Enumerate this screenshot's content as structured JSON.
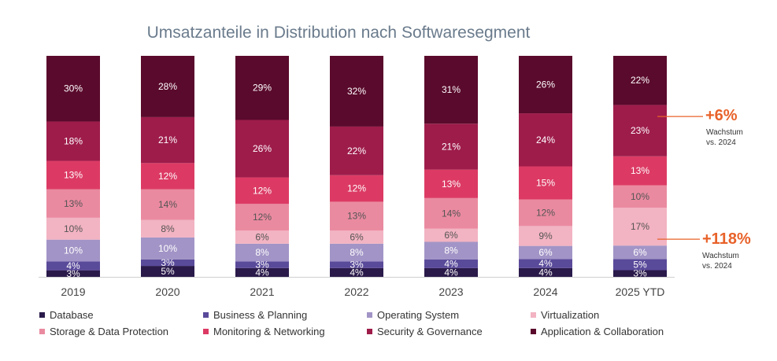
{
  "chart_data": {
    "type": "stacked-bar",
    "title": "Umsatzanteile in Distribution nach Softwaresegment",
    "categories": [
      "2019",
      "2020",
      "2021",
      "2022",
      "2023",
      "2024",
      "2025 YTD"
    ],
    "ylim": [
      0,
      100
    ],
    "series": [
      {
        "name": "Database",
        "color": "#2a1a4a",
        "values": [
          3,
          5,
          4,
          4,
          4,
          4,
          3
        ]
      },
      {
        "name": "Business & Planning",
        "color": "#5a4a9a",
        "values": [
          4,
          3,
          3,
          3,
          4,
          4,
          5
        ]
      },
      {
        "name": "Operating System",
        "color": "#a294c6",
        "values": [
          10,
          10,
          8,
          8,
          8,
          6,
          6
        ]
      },
      {
        "name": "Virtualization",
        "color": "#f2b3c2",
        "values": [
          10,
          8,
          6,
          6,
          6,
          9,
          17
        ]
      },
      {
        "name": "Storage & Data Protection",
        "color": "#ea8aa0",
        "values": [
          13,
          14,
          12,
          13,
          14,
          12,
          10
        ]
      },
      {
        "name": "Monitoring & Networking",
        "color": "#dc3a64",
        "values": [
          13,
          12,
          12,
          12,
          13,
          15,
          13
        ]
      },
      {
        "name": "Security & Governance",
        "color": "#9e1c4a",
        "values": [
          18,
          21,
          26,
          22,
          21,
          24,
          23
        ]
      },
      {
        "name": "Application & Collaboration",
        "color": "#5a0a2c",
        "values": [
          30,
          28,
          29,
          32,
          31,
          26,
          22
        ]
      }
    ],
    "annotations": [
      {
        "value": "+6%",
        "line1": "Wachstum",
        "line2": "vs. 2024",
        "series": "Security & Governance",
        "category": "2025 YTD"
      },
      {
        "value": "+118%",
        "line1": "Wachstum",
        "line2": "vs. 2024",
        "series": "Virtualization",
        "category": "2025 YTD"
      }
    ],
    "annotation_color": "#e8622a"
  }
}
